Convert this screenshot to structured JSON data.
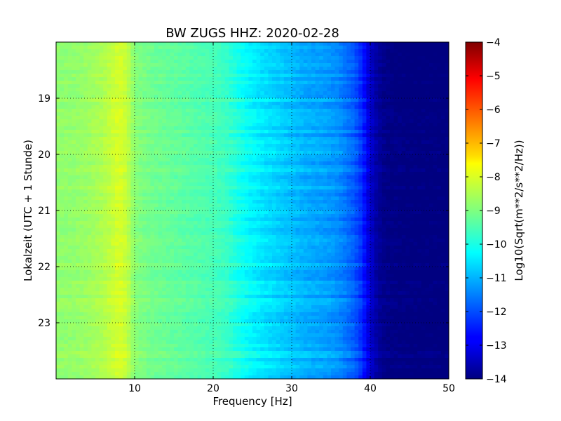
{
  "chart_data": {
    "type": "heatmap",
    "title": "BW ZUGS HHZ: 2020-02-28",
    "xlabel": "Frequency [Hz]",
    "ylabel": "Lokalzeit (UTC + 1 Stunde)",
    "colorbar_label": "Log10(Sqrt(m**2/s**2/Hz))",
    "xlim": [
      0,
      50
    ],
    "ylim": [
      24,
      18
    ],
    "x_ticks": [
      10,
      20,
      30,
      40,
      50
    ],
    "x_tick_labels": [
      "10",
      "20",
      "30",
      "40",
      "50"
    ],
    "y_ticks": [
      19,
      20,
      21,
      22,
      23
    ],
    "y_tick_labels": [
      "19",
      "20",
      "21",
      "22",
      "23"
    ],
    "clim": [
      -14,
      -4
    ],
    "colorbar_ticks": [
      -4,
      -5,
      -6,
      -7,
      -8,
      -9,
      -10,
      -11,
      -12,
      -13,
      -14
    ],
    "colorbar_tick_labels": [
      "−4",
      "−5",
      "−6",
      "−7",
      "−8",
      "−9",
      "−10",
      "−11",
      "−12",
      "−13",
      "−14"
    ],
    "colormap": "jet",
    "grid": true,
    "frequency_hz": [
      0,
      2,
      4,
      6,
      7,
      8,
      9,
      10,
      12,
      14,
      16,
      18,
      20,
      22,
      24,
      26,
      28,
      30,
      32,
      34,
      36,
      38,
      39,
      40,
      41,
      42,
      45,
      50
    ],
    "mean_log_psd": [
      -8.8,
      -8.8,
      -8.7,
      -8.5,
      -8.3,
      -8.1,
      -8.3,
      -8.9,
      -9.1,
      -9.2,
      -9.3,
      -9.4,
      -9.5,
      -9.7,
      -10.1,
      -10.4,
      -10.6,
      -10.8,
      -11.0,
      -11.1,
      -11.3,
      -11.8,
      -12.3,
      -13.2,
      -13.7,
      -13.9,
      -14.0,
      -14.0
    ]
  }
}
